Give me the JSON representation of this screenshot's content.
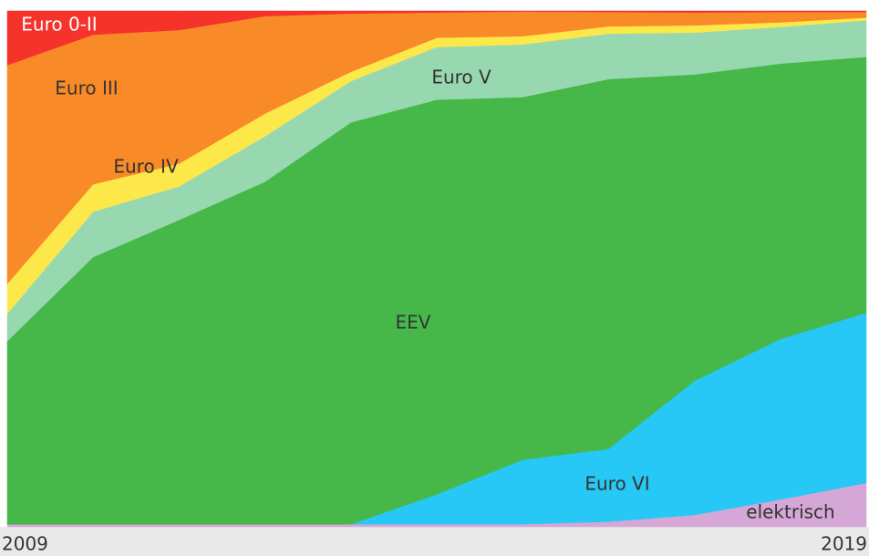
{
  "chart_data": {
    "type": "stacked_area_percent",
    "categories": [
      "2009",
      null,
      null,
      null,
      null,
      null,
      null,
      null,
      null,
      null,
      "2019"
    ],
    "ylim": [
      0,
      100
    ],
    "series": [
      {
        "name": "elektrisch",
        "color": "#d4a7d6",
        "values": [
          0.5,
          0.5,
          0.5,
          0.5,
          0.5,
          0.5,
          0.5,
          1,
          2.3,
          5.3,
          8.5
        ]
      },
      {
        "name": "Euro VI",
        "color": "#27c8f5",
        "values": [
          0,
          0,
          0,
          0,
          0,
          5.8,
          12.5,
          14.1,
          26,
          31.1,
          33
        ]
      },
      {
        "name": "EEV",
        "color": "#46b84a",
        "values": [
          35.5,
          51.8,
          59,
          66.4,
          77.9,
          76.5,
          70.3,
          71.7,
          59.4,
          53.4,
          49.6
        ]
      },
      {
        "name": "Euro V",
        "color": "#98d8b0",
        "values": [
          5.3,
          8.8,
          6.5,
          8.8,
          8,
          10.2,
          10.2,
          8.8,
          8.1,
          7.1,
          7.1
        ]
      },
      {
        "name": "Euro IV",
        "color": "#fde84a",
        "values": [
          5.8,
          5.3,
          4.4,
          4.4,
          1.8,
          1.8,
          1.6,
          1.4,
          1.4,
          0.9,
          0.5
        ]
      },
      {
        "name": "Euro III",
        "color": "#f98a28",
        "values": [
          42.4,
          29,
          25.9,
          18.9,
          11.3,
          4.9,
          4.8,
          2.8,
          2.5,
          2,
          1.1
        ]
      },
      {
        "name": "Euro 0-II",
        "color": "#f5332a",
        "values": [
          10.5,
          4.6,
          3.7,
          1,
          0.5,
          0.3,
          0.1,
          0.2,
          0.3,
          0.2,
          0.2
        ]
      }
    ]
  }
}
